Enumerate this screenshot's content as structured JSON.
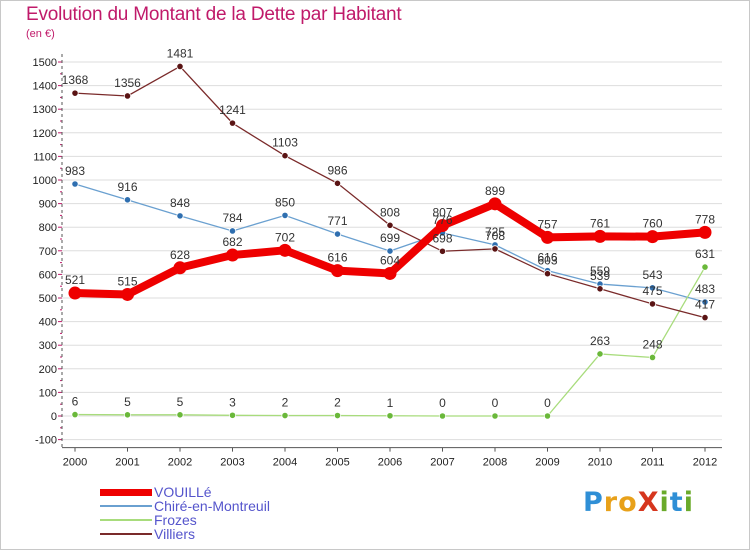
{
  "title": "Evolution du Montant de la Dette par Habitant",
  "unit_label": "(en €)",
  "brand": {
    "text": "ProXiti",
    "letters": [
      "P",
      "r",
      "o",
      "X",
      "i",
      "t",
      "i"
    ],
    "letter_colors": [
      "#2f8fd6",
      "#e8a11a",
      "#e8a11a",
      "#d6361e",
      "#6aaa2a",
      "#2f8fd6",
      "#6aaa2a"
    ]
  },
  "colors": {
    "title": "#c01a6a",
    "grid": "#dddddd",
    "axis": "#555555",
    "legend_text": "#5555cc"
  },
  "chart_data": {
    "type": "line",
    "title": "Evolution du Montant de la Dette par Habitant",
    "ylabel": "(en €)",
    "xlabel": "",
    "x": [
      "2000",
      "2001",
      "2002",
      "2003",
      "2004",
      "2005",
      "2006",
      "2007",
      "2008",
      "2009",
      "2010",
      "2011",
      "2012"
    ],
    "ylim": [
      -100,
      1500
    ],
    "yticks": [
      -100,
      0,
      100,
      200,
      300,
      400,
      500,
      600,
      700,
      800,
      900,
      1000,
      1100,
      1200,
      1300,
      1400,
      1500
    ],
    "grid": "horizontal",
    "legend_position": "bottom-left",
    "series": [
      {
        "name": "VOUILLé",
        "color": "#ee0000",
        "emphasis": true,
        "values": [
          521,
          515,
          628,
          682,
          702,
          616,
          604,
          807,
          899,
          757,
          761,
          760,
          778
        ],
        "labels": [
          "521",
          "515",
          "628",
          "682",
          "702",
          "616",
          "604",
          "807",
          "899",
          "757",
          "761",
          "760",
          "778"
        ]
      },
      {
        "name": "Chiré-en-Montreuil",
        "color": "#6aa0d0",
        "marker": "#2f6fb0",
        "values": [
          983,
          916,
          848,
          784,
          850,
          771,
          699,
          776,
          725,
          616,
          559,
          543,
          483
        ],
        "labels": [
          "983",
          "916",
          "848",
          "784",
          "850",
          "771",
          "699",
          "776",
          "725",
          "616",
          "559",
          "543",
          "483"
        ]
      },
      {
        "name": "Frozes",
        "color": "#a8dc7c",
        "marker": "#6ab83a",
        "values": [
          6,
          5,
          5,
          3,
          2,
          2,
          1,
          0,
          0,
          0,
          263,
          248,
          631
        ],
        "labels": [
          "6",
          "5",
          "5",
          "3",
          "2",
          "2",
          "1",
          "0",
          "0",
          "0",
          "263",
          "248",
          "631"
        ]
      },
      {
        "name": "Villiers",
        "color": "#7a2a2a",
        "marker": "#5a1414",
        "values": [
          1368,
          1356,
          1481,
          1241,
          1103,
          986,
          808,
          698,
          708,
          603,
          539,
          475,
          417
        ],
        "labels": [
          "1368",
          "1356",
          "1481",
          "1241",
          "1103",
          "986",
          "808",
          "698",
          "708",
          "603",
          "539",
          "475",
          "417"
        ]
      }
    ]
  }
}
